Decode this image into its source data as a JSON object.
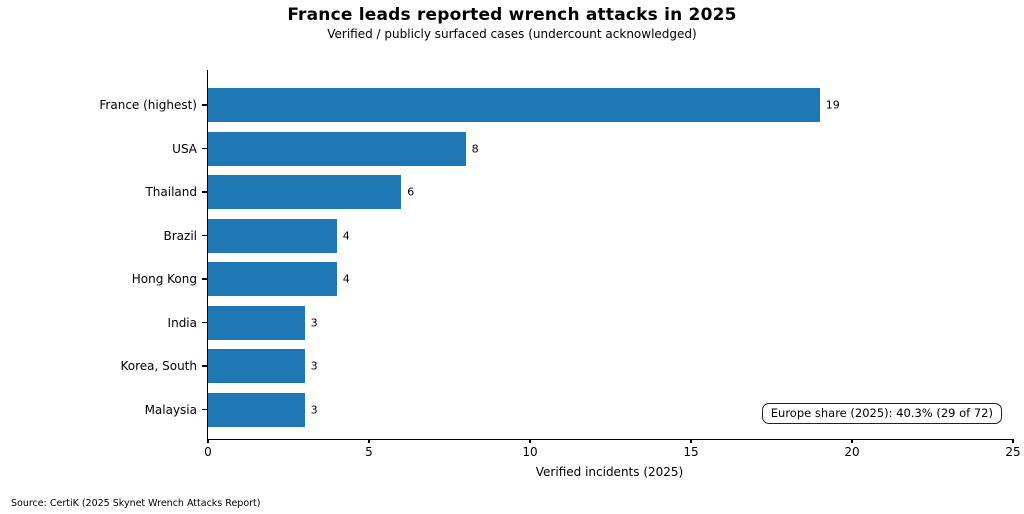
{
  "chart_data": {
    "type": "bar",
    "orientation": "horizontal",
    "title": "France leads reported wrench attacks in 2025",
    "subtitle": "Verified / publicly surfaced cases (undercount acknowledged)",
    "categories": [
      "France (highest)",
      "USA",
      "Thailand",
      "Brazil",
      "Hong Kong",
      "India",
      "Korea, South",
      "Malaysia"
    ],
    "values": [
      19,
      8,
      6,
      4,
      4,
      3,
      3,
      3
    ],
    "xlabel": "Verified incidents (2025)",
    "ylabel": "",
    "xlim": [
      0,
      25
    ],
    "xticks": [
      0,
      5,
      10,
      15,
      20,
      25
    ],
    "bar_color": "#1f77b4",
    "grid": false,
    "legend": null,
    "annotation": "Europe share (2025): 40.3% (29 of 72)",
    "source": "Source: CertiK (2025 Skynet Wrench Attacks Report)"
  }
}
